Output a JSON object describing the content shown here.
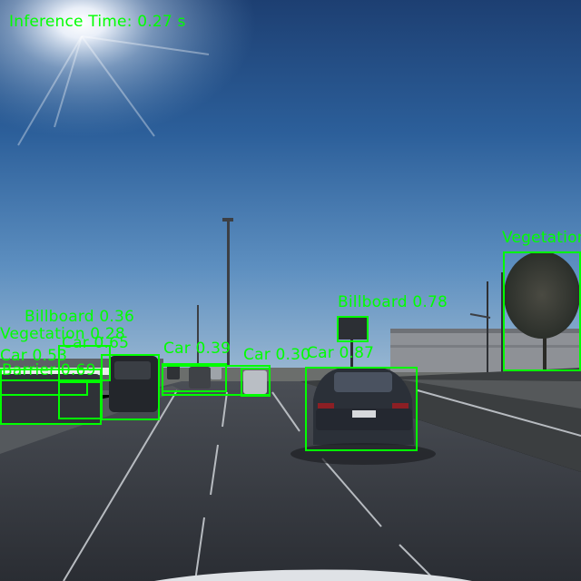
{
  "overlay": {
    "inference_time": "Inference Time: 0.27 s",
    "box_color": "#00FF00"
  },
  "detections": [
    {
      "label": "Vegetation",
      "icon": "vegetation-icon"
    },
    {
      "label": "Billboard 0.78",
      "icon": "billboard-icon"
    },
    {
      "label": "Car 0.87",
      "icon": "car-icon"
    },
    {
      "label": "Car 0.30",
      "icon": "car-icon"
    },
    {
      "label": "Car 0.39",
      "icon": "car-icon"
    },
    {
      "label": "Billboard 0.36",
      "icon": "billboard-icon"
    },
    {
      "label": "Vegetation 0.28",
      "icon": "vegetation-icon"
    },
    {
      "label": "Car 0.65",
      "icon": "car-icon"
    },
    {
      "label": "Car 0.53",
      "icon": "car-icon"
    },
    {
      "label": "Barrier 0.69",
      "icon": "barrier-icon"
    }
  ]
}
